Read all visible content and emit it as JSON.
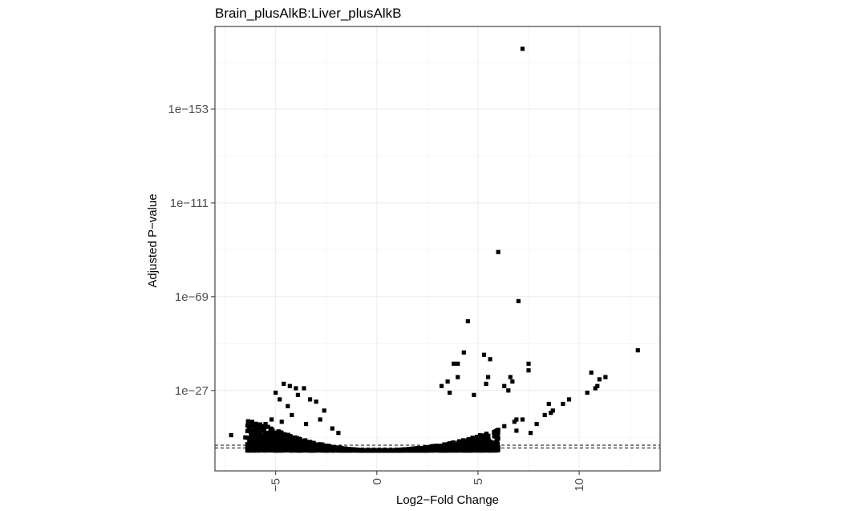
{
  "chart_data": {
    "type": "scatter",
    "title": "Brain_plusAlkB:Liver_plusAlkB",
    "xlabel": "Log2−Fold Change",
    "ylabel": "Adjusted P−value",
    "x_ticks": [
      -5,
      0,
      5,
      10
    ],
    "x_tick_labels": [
      "−5",
      "0",
      "5",
      "10"
    ],
    "y_ticks": [
      27,
      69,
      111,
      153
    ],
    "y_tick_labels": [
      "1e−27",
      "1e−69",
      "1e−111",
      "1e−153"
    ],
    "y_scale": "-log10",
    "xlim": [
      -8,
      14
    ],
    "ylim": [
      -9,
      190
    ],
    "threshold_lines_neglog10": [
      1.3,
      2.5
    ],
    "grid": true,
    "marker_color": "#000000",
    "points": [
      [
        7.2,
        180
      ],
      [
        6.0,
        89
      ],
      [
        7.0,
        67
      ],
      [
        4.5,
        58
      ],
      [
        4.3,
        44
      ],
      [
        12.9,
        45
      ],
      [
        5.6,
        41
      ],
      [
        5.3,
        43
      ],
      [
        3.8,
        39
      ],
      [
        4.0,
        39
      ],
      [
        7.5,
        39
      ],
      [
        7.5,
        36
      ],
      [
        10.6,
        35
      ],
      [
        11.3,
        33
      ],
      [
        11.0,
        32
      ],
      [
        10.9,
        29
      ],
      [
        10.8,
        28
      ],
      [
        10.4,
        26
      ],
      [
        5.5,
        33
      ],
      [
        5.4,
        30
      ],
      [
        6.6,
        33
      ],
      [
        6.7,
        31
      ],
      [
        6.3,
        29
      ],
      [
        6.5,
        27
      ],
      [
        4.0,
        33
      ],
      [
        3.5,
        31
      ],
      [
        3.2,
        29
      ],
      [
        3.6,
        26
      ],
      [
        4.8,
        25
      ],
      [
        9.5,
        23
      ],
      [
        9.2,
        21
      ],
      [
        8.5,
        21
      ],
      [
        8.7,
        18
      ],
      [
        8.6,
        17
      ],
      [
        8.3,
        16
      ],
      [
        7.2,
        14
      ],
      [
        6.8,
        13
      ],
      [
        6.3,
        11
      ],
      [
        6.9,
        9
      ],
      [
        7.6,
        8
      ],
      [
        7.9,
        12
      ],
      [
        6.9,
        14
      ],
      [
        -4.6,
        30
      ],
      [
        -4.3,
        29
      ],
      [
        -4.0,
        28
      ],
      [
        -3.6,
        28
      ],
      [
        -3.9,
        25
      ],
      [
        -3.3,
        23
      ],
      [
        -3.0,
        22
      ],
      [
        -5.0,
        26
      ],
      [
        -4.8,
        23
      ],
      [
        -4.4,
        20
      ],
      [
        -2.6,
        18
      ],
      [
        -2.8,
        14
      ],
      [
        -5.2,
        14
      ],
      [
        -5.5,
        12
      ],
      [
        -6.0,
        9
      ],
      [
        -6.5,
        6
      ],
      [
        -7.2,
        7
      ],
      [
        -5.7,
        6
      ],
      [
        -5.9,
        4
      ],
      [
        -4.2,
        16
      ],
      [
        -4.7,
        13
      ],
      [
        -3.5,
        12
      ],
      [
        -2.2,
        10
      ],
      [
        -1.9,
        8
      ]
    ]
  }
}
